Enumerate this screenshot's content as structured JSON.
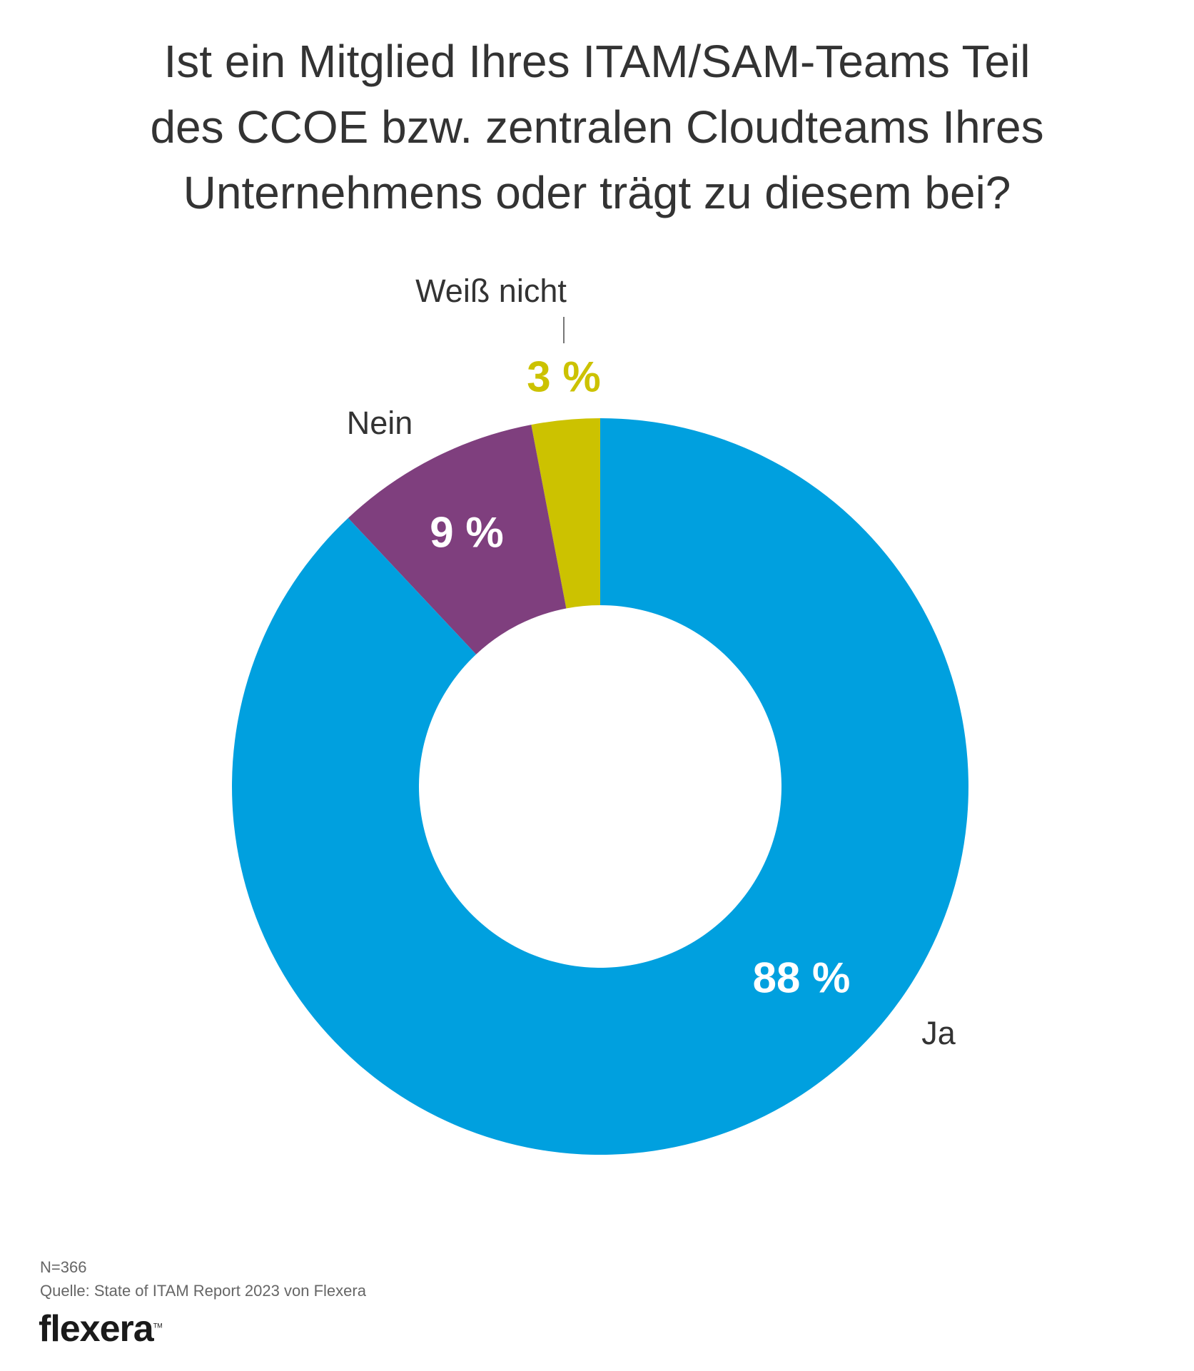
{
  "chart_data": {
    "type": "pie",
    "variant": "donut",
    "title_lines": [
      "Ist ein Mitglied Ihres ITAM/SAM-Teams Teil",
      "des CCOE bzw. zentralen Cloudteams Ihres",
      "Unternehmens oder trägt zu diesem bei?"
    ],
    "slices": [
      {
        "label": "Ja",
        "value": 88,
        "value_label": "88 %",
        "color": "#00A0DF"
      },
      {
        "label": "Nein",
        "value": 9,
        "value_label": "9 %",
        "color": "#7F3F7E"
      },
      {
        "label": "Weiß nicht",
        "value": 3,
        "value_label": "3 %",
        "color": "#CCC200"
      }
    ],
    "start": "top",
    "direction": "clockwise"
  },
  "footer": {
    "n": "N=366",
    "source": "Quelle: State of ITAM Report 2023 von Flexera",
    "logo": "flexera",
    "logo_tm": "TM"
  }
}
